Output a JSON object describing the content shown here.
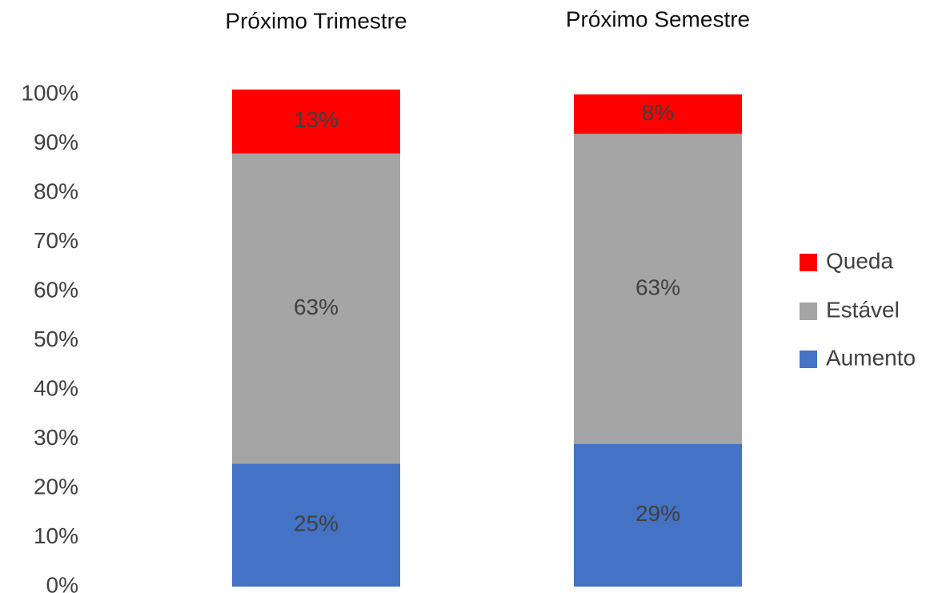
{
  "chart_data": {
    "type": "bar",
    "stacked": true,
    "categories": [
      "Próximo Trimestre",
      "Próximo Semestre"
    ],
    "series": [
      {
        "name": "Aumento",
        "values": [
          25,
          29
        ],
        "labels": [
          "25%",
          "29%"
        ],
        "color": "#4472C4"
      },
      {
        "name": "Estável",
        "values": [
          63,
          63
        ],
        "labels": [
          "63%",
          "63%"
        ],
        "color": "#A5A5A5"
      },
      {
        "name": "Queda",
        "values": [
          13,
          8
        ],
        "labels": [
          "13%",
          "8%"
        ],
        "color": "#FF0000"
      }
    ],
    "yticks": [
      "0%",
      "10%",
      "20%",
      "30%",
      "40%",
      "50%",
      "60%",
      "70%",
      "80%",
      "90%",
      "100%"
    ],
    "ylim": [
      0,
      100
    ],
    "legend_position": "right",
    "legend_order": [
      "Queda",
      "Estável",
      "Aumento"
    ],
    "grid": false
  }
}
